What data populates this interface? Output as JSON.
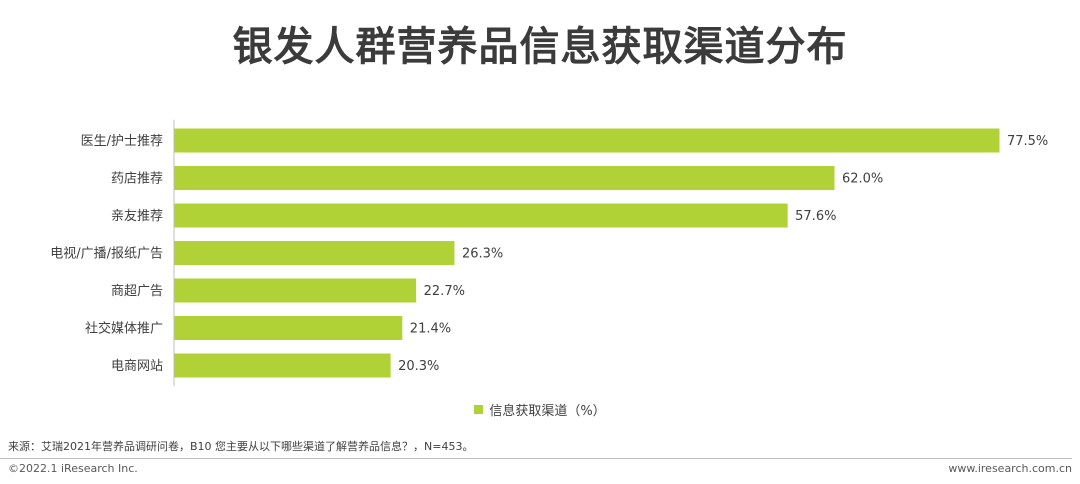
{
  "title": "银发人群营养品信息获取渠道分布",
  "chart_data": {
    "type": "bar",
    "orientation": "horizontal",
    "categories": [
      "医生/护士推荐",
      "药店推荐",
      "亲友推荐",
      "电视/广播/报纸广告",
      "商超广告",
      "社交媒体推广",
      "电商网站"
    ],
    "series": [
      {
        "name": "信息获取渠道（%）",
        "values": [
          77.5,
          62.0,
          57.6,
          26.3,
          22.7,
          21.4,
          20.3
        ],
        "color": "#b0d236"
      }
    ],
    "xlim": [
      0,
      100
    ],
    "value_suffix": "%",
    "grid": false,
    "legend_position": "bottom-center"
  },
  "legend": {
    "label": "信息获取渠道（%）"
  },
  "footer": {
    "source": "来源：艾瑞2021年营养品调研问卷，B10 您主要从以下哪些渠道了解营养品信息？，N=453。",
    "copyright": "©2022.1 iResearch Inc.",
    "website": "www.iresearch.com.cn"
  }
}
